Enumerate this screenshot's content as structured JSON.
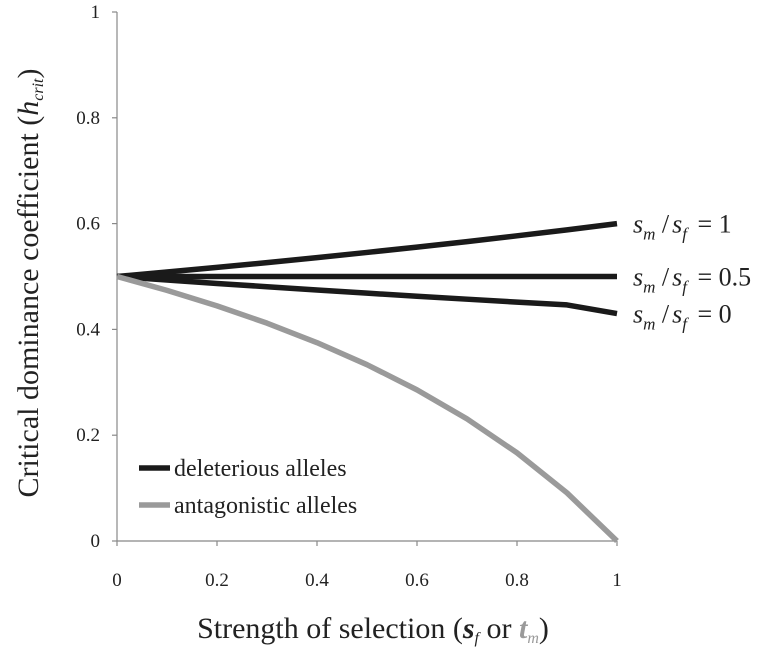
{
  "chart_data": {
    "type": "line",
    "xlabel": "Strength of selection (sf or tm)",
    "xlabel_parts": {
      "prefix": "Strength of selection (",
      "s": "s",
      "s_sub": "f",
      "or": " or ",
      "t": "t",
      "t_sub": "m",
      "suffix": ")"
    },
    "ylabel": "Critical dominance coefficient (hcrit)",
    "ylabel_parts": {
      "prefix": "Critical dominance coefficient (",
      "h": "h",
      "h_sub": "crit",
      "suffix": ")"
    },
    "xlim": [
      0,
      1
    ],
    "ylim": [
      0,
      1
    ],
    "x_ticks": [
      "0",
      "0.2",
      "0.4",
      "0.6",
      "0.8",
      "1"
    ],
    "y_ticks": [
      "0",
      "0.2",
      "0.4",
      "0.6",
      "0.8",
      "1"
    ],
    "grid": false,
    "legend_position": "bottom-left",
    "legend": [
      {
        "label": "deleterious alleles",
        "color": "#1a1a1a"
      },
      {
        "label": "antagonistic alleles",
        "color": "#9a9a9a"
      }
    ],
    "series": [
      {
        "label_text": "= 1",
        "color": "#1a1a1a",
        "x": [
          0,
          0.1,
          0.2,
          0.3,
          0.4,
          0.5,
          0.6,
          0.7,
          0.8,
          0.9,
          1.0
        ],
        "y": [
          0.5,
          0.5085,
          0.5172,
          0.5263,
          0.5357,
          0.5455,
          0.5556,
          0.566,
          0.5769,
          0.5882,
          0.6
        ]
      },
      {
        "label_text": "= 0.5",
        "color": "#1a1a1a",
        "x": [
          0,
          1.0
        ],
        "y": [
          0.5,
          0.5
        ]
      },
      {
        "label_text": "= 0",
        "color": "#1a1a1a",
        "x": [
          0,
          0.1,
          0.2,
          0.3,
          0.4,
          0.5,
          0.6,
          0.7,
          0.8,
          0.9,
          1.0
        ],
        "y": [
          0.5,
          0.4933,
          0.4868,
          0.4807,
          0.4744,
          0.4685,
          0.4627,
          0.4571,
          0.4516,
          0.4463,
          0.43
        ]
      },
      {
        "name": "antagonistic alleles",
        "color": "#9a9a9a",
        "x": [
          0,
          0.1,
          0.2,
          0.3,
          0.4,
          0.5,
          0.6,
          0.7,
          0.8,
          0.9,
          1.0
        ],
        "y": [
          0.5,
          0.4737,
          0.4444,
          0.4118,
          0.375,
          0.3333,
          0.2857,
          0.2308,
          0.1667,
          0.0909,
          0
        ]
      }
    ],
    "curve_label_symbols": {
      "s": "s",
      "m": "m",
      "f": "f",
      "slash": "/"
    }
  }
}
